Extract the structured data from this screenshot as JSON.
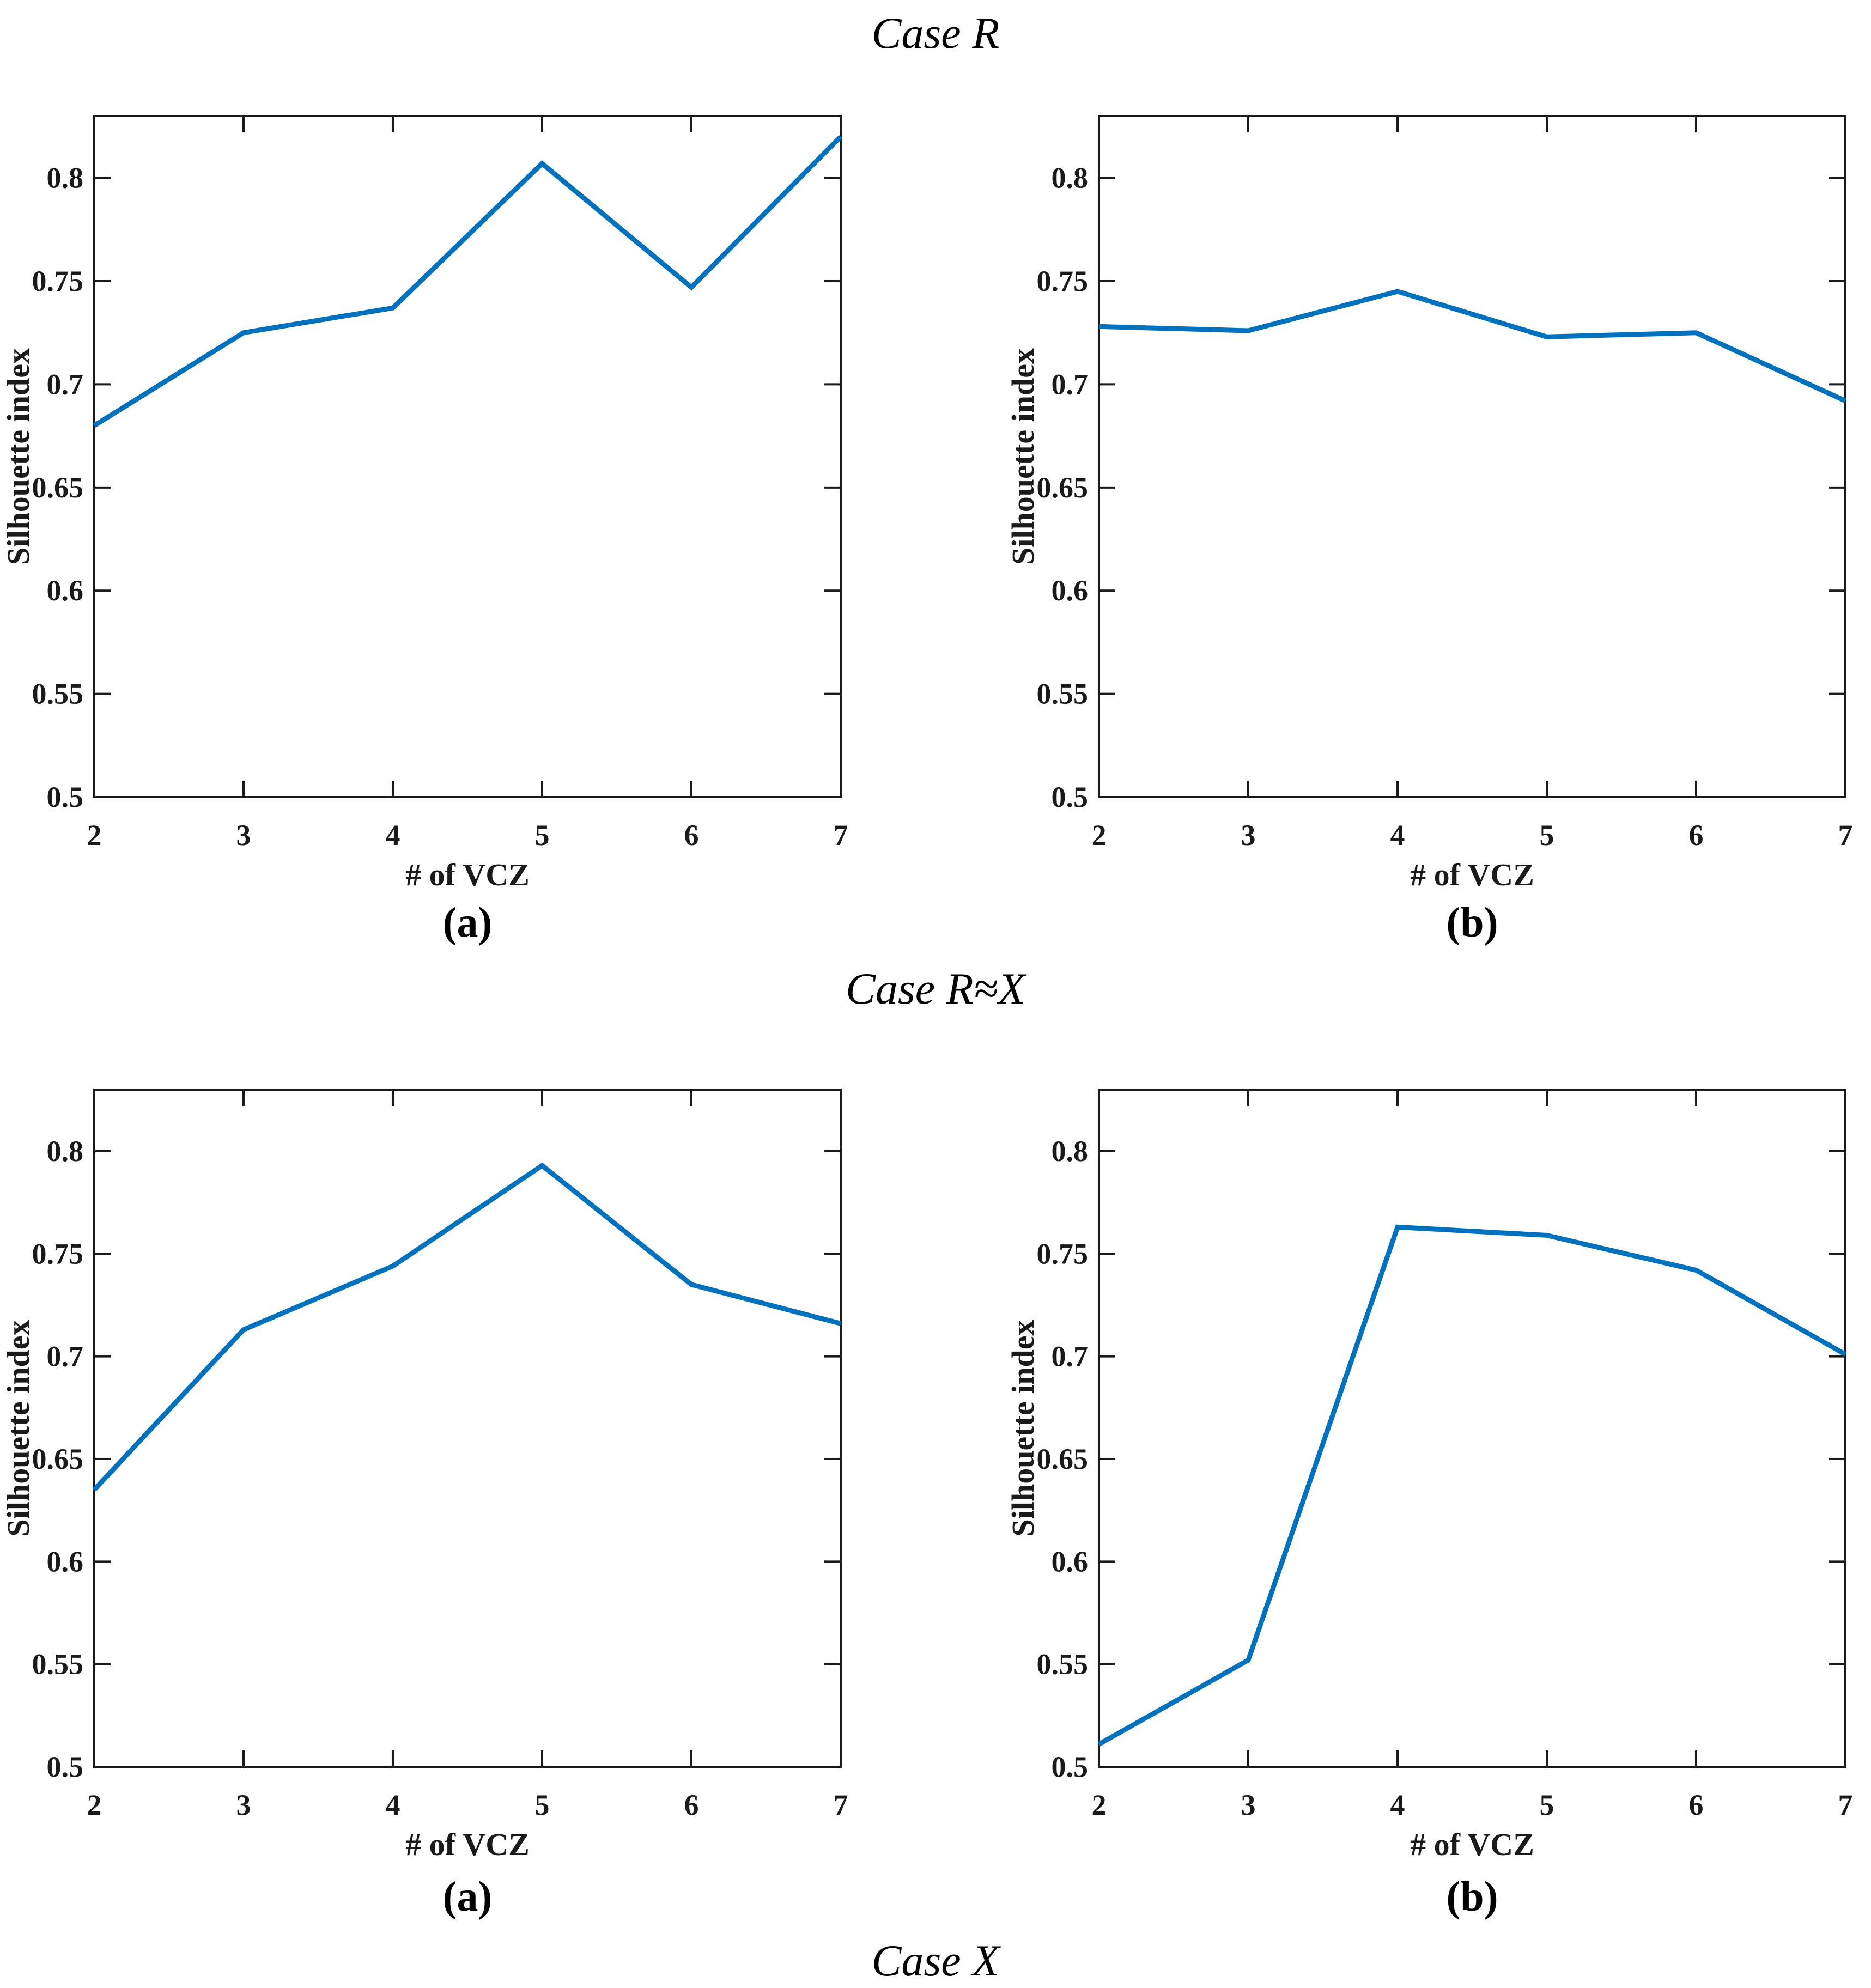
{
  "figure": {
    "title_top": "Case R",
    "title_middle": "Case R≈X",
    "title_bottom": "Case X",
    "captions": [
      "(a)",
      "(b)"
    ]
  },
  "colors": {
    "line": "#0072BD",
    "axis": "#1a1a1a",
    "text": "#1a1a1a",
    "background": "#ffffff"
  },
  "chart_data": [
    {
      "type": "line",
      "case": "Case R",
      "panel": "(a)",
      "xlabel": "# of VCZ",
      "ylabel": "Silhouette index",
      "x": [
        2,
        3,
        4,
        5,
        6,
        7
      ],
      "y": [
        0.68,
        0.725,
        0.737,
        0.807,
        0.747,
        0.82
      ],
      "xlim": [
        2,
        7
      ],
      "ylim": [
        0.5,
        0.83
      ],
      "xticks": [
        2,
        3,
        4,
        5,
        6,
        7
      ],
      "yticks": [
        0.5,
        0.55,
        0.6,
        0.65,
        0.7,
        0.75,
        0.8
      ],
      "grid": false,
      "legend": null
    },
    {
      "type": "line",
      "case": "Case R",
      "panel": "(b)",
      "xlabel": "# of VCZ",
      "ylabel": "Silhouette index",
      "x": [
        2,
        3,
        4,
        5,
        6,
        7
      ],
      "y": [
        0.728,
        0.726,
        0.745,
        0.723,
        0.725,
        0.692
      ],
      "xlim": [
        2,
        7
      ],
      "ylim": [
        0.5,
        0.83
      ],
      "xticks": [
        2,
        3,
        4,
        5,
        6,
        7
      ],
      "yticks": [
        0.5,
        0.55,
        0.6,
        0.65,
        0.7,
        0.75,
        0.8
      ],
      "grid": false,
      "legend": null
    },
    {
      "type": "line",
      "case": "Case R≈X",
      "panel": "(a)",
      "xlabel": "# of VCZ",
      "ylabel": "Silhouette index",
      "x": [
        2,
        3,
        4,
        5,
        6,
        7
      ],
      "y": [
        0.635,
        0.713,
        0.744,
        0.793,
        0.735,
        0.716
      ],
      "xlim": [
        2,
        7
      ],
      "ylim": [
        0.5,
        0.83
      ],
      "xticks": [
        2,
        3,
        4,
        5,
        6,
        7
      ],
      "yticks": [
        0.5,
        0.55,
        0.6,
        0.65,
        0.7,
        0.75,
        0.8
      ],
      "grid": false,
      "legend": null
    },
    {
      "type": "line",
      "case": "Case R≈X",
      "panel": "(b)",
      "xlabel": "# of VCZ",
      "ylabel": "Silhouette index",
      "x": [
        2,
        3,
        4,
        5,
        6,
        7
      ],
      "y": [
        0.511,
        0.552,
        0.763,
        0.759,
        0.742,
        0.701
      ],
      "xlim": [
        2,
        7
      ],
      "ylim": [
        0.5,
        0.83
      ],
      "xticks": [
        2,
        3,
        4,
        5,
        6,
        7
      ],
      "yticks": [
        0.5,
        0.55,
        0.6,
        0.65,
        0.7,
        0.75,
        0.8
      ],
      "grid": false,
      "legend": null
    }
  ]
}
